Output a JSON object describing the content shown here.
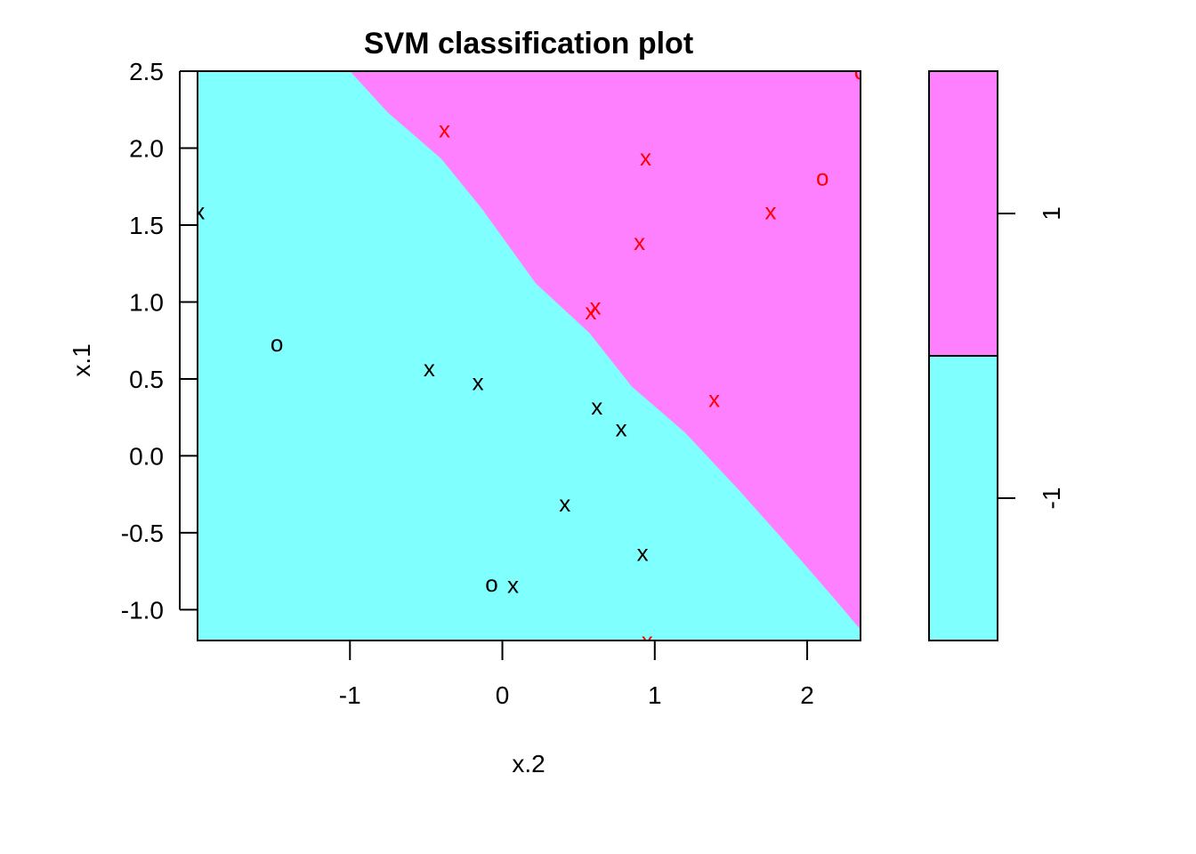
{
  "chart_data": {
    "type": "scatter",
    "title": "SVM classification plot",
    "xlabel": "x.2",
    "ylabel": "x.1",
    "xlim": [
      -2.0,
      2.35
    ],
    "ylim": [
      -1.2,
      2.5
    ],
    "x_ticks": [
      {
        "value": -1,
        "label": "-1"
      },
      {
        "value": 0,
        "label": "0"
      },
      {
        "value": 1,
        "label": "1"
      },
      {
        "value": 2,
        "label": "2"
      }
    ],
    "y_ticks": [
      {
        "value": -1.0,
        "label": "-1.0"
      },
      {
        "value": -0.5,
        "label": "-0.5"
      },
      {
        "value": 0.0,
        "label": "0.0"
      },
      {
        "value": 0.5,
        "label": "0.5"
      },
      {
        "value": 1.0,
        "label": "1.0"
      },
      {
        "value": 1.5,
        "label": "1.5"
      },
      {
        "value": 2.0,
        "label": "2.0"
      },
      {
        "value": 2.5,
        "label": "2.5"
      }
    ],
    "decision_boundary": [
      [
        -1.0,
        2.5
      ],
      [
        -0.75,
        2.23
      ],
      [
        -0.4,
        1.93
      ],
      [
        -0.13,
        1.6
      ],
      [
        0.22,
        1.12
      ],
      [
        0.57,
        0.8
      ],
      [
        0.85,
        0.45
      ],
      [
        1.2,
        0.15
      ],
      [
        1.55,
        -0.22
      ],
      [
        1.82,
        -0.52
      ],
      [
        2.18,
        -0.93
      ],
      [
        2.35,
        -1.13
      ]
    ],
    "regions": [
      {
        "class": "1",
        "color": "#ff80ff"
      },
      {
        "class": "-1",
        "color": "#80ffff"
      }
    ],
    "points": [
      {
        "x": 2.35,
        "y": 2.5,
        "marker": "o",
        "class": "1"
      },
      {
        "x": -0.38,
        "y": 2.12,
        "marker": "x",
        "class": "1"
      },
      {
        "x": 0.94,
        "y": 1.94,
        "marker": "x",
        "class": "1"
      },
      {
        "x": 2.1,
        "y": 1.81,
        "marker": "o",
        "class": "1"
      },
      {
        "x": 1.76,
        "y": 1.59,
        "marker": "x",
        "class": "1"
      },
      {
        "x": 0.9,
        "y": 1.39,
        "marker": "x",
        "class": "1"
      },
      {
        "x": 0.61,
        "y": 0.97,
        "marker": "x",
        "class": "1"
      },
      {
        "x": 0.58,
        "y": 0.94,
        "marker": "x",
        "class": "1"
      },
      {
        "x": 1.39,
        "y": 0.37,
        "marker": "x",
        "class": "1"
      },
      {
        "x": 0.95,
        "y": -1.2,
        "marker": "x",
        "class": "1"
      },
      {
        "x": -1.99,
        "y": 1.59,
        "marker": "x",
        "class": "-1"
      },
      {
        "x": -1.48,
        "y": 0.73,
        "marker": "o",
        "class": "-1"
      },
      {
        "x": -0.48,
        "y": 0.57,
        "marker": "x",
        "class": "-1"
      },
      {
        "x": -0.16,
        "y": 0.48,
        "marker": "x",
        "class": "-1"
      },
      {
        "x": 0.62,
        "y": 0.32,
        "marker": "x",
        "class": "-1"
      },
      {
        "x": 0.78,
        "y": 0.18,
        "marker": "x",
        "class": "-1"
      },
      {
        "x": 0.41,
        "y": -0.31,
        "marker": "x",
        "class": "-1"
      },
      {
        "x": 0.92,
        "y": -0.63,
        "marker": "x",
        "class": "-1"
      },
      {
        "x": -0.07,
        "y": -0.83,
        "marker": "o",
        "class": "-1"
      },
      {
        "x": 0.07,
        "y": -0.84,
        "marker": "x",
        "class": "-1"
      }
    ],
    "point_colors": {
      "1": "#ff0000",
      "-1": "#000000"
    },
    "legend": {
      "placement": "right",
      "entries": [
        {
          "label": "1",
          "color": "#ff80ff"
        },
        {
          "label": "-1",
          "color": "#80ffff"
        }
      ]
    }
  }
}
